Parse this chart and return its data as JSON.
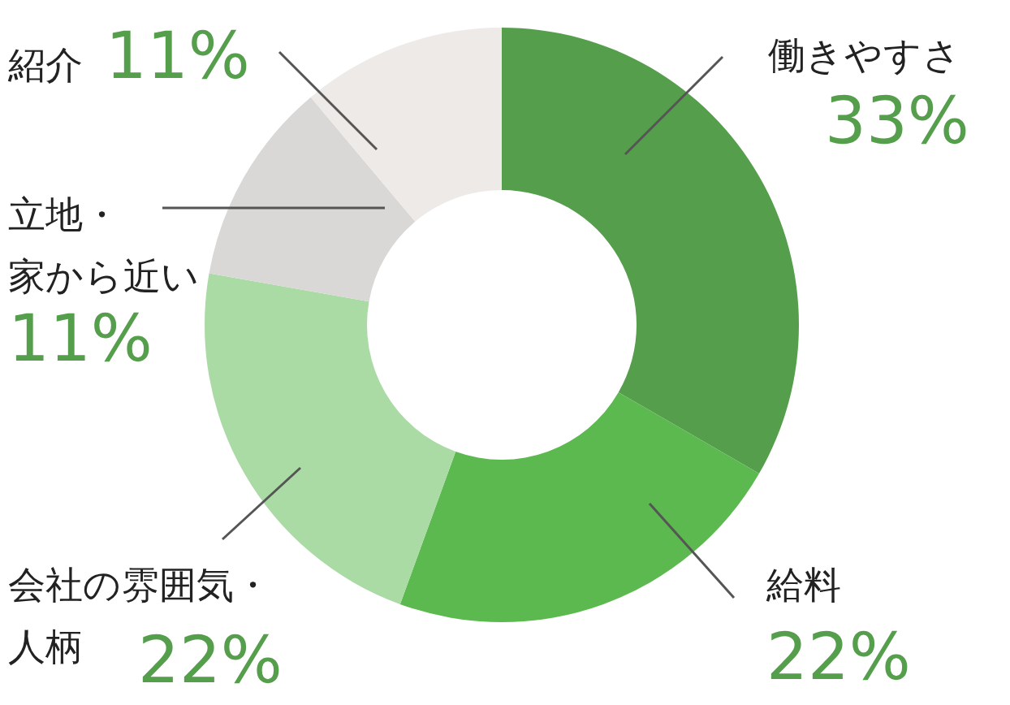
{
  "chart_data": {
    "type": "donut",
    "categories": [
      "働きやすさ",
      "給料",
      "会社の雰囲気・人柄",
      "立地・家から近い",
      "紹介"
    ],
    "values": [
      33,
      22,
      22,
      11,
      11
    ],
    "value_labels": [
      "33%",
      "22%",
      "22%",
      "11%",
      "11%"
    ],
    "colors": [
      "#559e4c",
      "#5cb94f",
      "#aadba4",
      "#d9d8d6",
      "#eeeae8"
    ],
    "legend": false
  }
}
